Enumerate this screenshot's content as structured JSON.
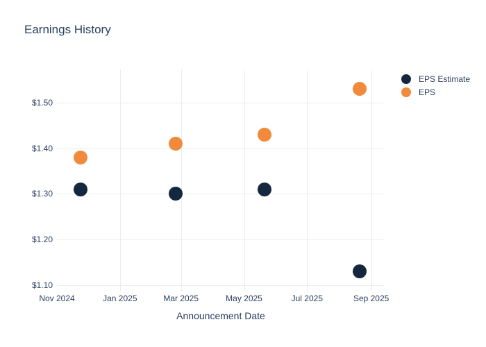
{
  "chart_data": {
    "type": "scatter",
    "title": "Earnings History",
    "xlabel": "Announcement Date",
    "ylabel": "",
    "grid": true,
    "legend_position": "right-top-outside",
    "x_range": [
      "2024-11-01",
      "2025-09-14"
    ],
    "y_range": [
      1.086,
      1.573
    ],
    "x_ticks": [
      {
        "label": "Nov 2024",
        "date": "2024-11-01"
      },
      {
        "label": "Jan 2025",
        "date": "2025-01-01"
      },
      {
        "label": "Mar 2025",
        "date": "2025-03-01"
      },
      {
        "label": "May 2025",
        "date": "2025-05-01"
      },
      {
        "label": "Jul 2025",
        "date": "2025-07-01"
      },
      {
        "label": "Sep 2025",
        "date": "2025-09-01"
      }
    ],
    "y_ticks": [
      {
        "label": "$1.10",
        "value": 1.1
      },
      {
        "label": "$1.20",
        "value": 1.2
      },
      {
        "label": "$1.30",
        "value": 1.3
      },
      {
        "label": "$1.40",
        "value": 1.4
      },
      {
        "label": "$1.50",
        "value": 1.5
      }
    ],
    "series": [
      {
        "name": "EPS Estimate",
        "color": "#14273f",
        "marker_size": 20,
        "points": [
          {
            "x": "2024-11-24",
            "y": 1.31
          },
          {
            "x": "2025-02-24",
            "y": 1.3
          },
          {
            "x": "2025-05-21",
            "y": 1.31
          },
          {
            "x": "2025-08-21",
            "y": 1.13
          }
        ]
      },
      {
        "name": "EPS",
        "color": "#f18a3d",
        "marker_size": 20,
        "points": [
          {
            "x": "2024-11-24",
            "y": 1.38
          },
          {
            "x": "2025-02-24",
            "y": 1.41
          },
          {
            "x": "2025-05-21",
            "y": 1.43
          },
          {
            "x": "2025-08-21",
            "y": 1.53
          }
        ]
      }
    ],
    "colors": {
      "grid": "#e9edf3",
      "text": "#2a3f5f",
      "background": "#ffffff"
    }
  }
}
